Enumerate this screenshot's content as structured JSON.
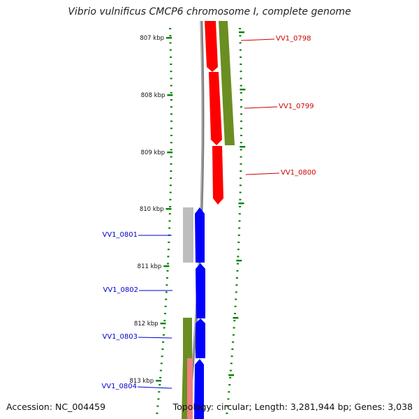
{
  "title": "Vibrio vulnificus CMCP6 chromosome I, complete genome",
  "accession": "Accession: NC_004459",
  "summary": "Topology: circular; Length: 3,281,944 bp; Genes: 3,038",
  "colors": {
    "forward_cds": "#ff0000",
    "reverse_cds": "#0000ff",
    "gene_olive": "#6b8e23",
    "gene_pink": "#f08080",
    "gene_gray": "#bdbdbd",
    "backbone": "#808080",
    "tick": "#008000",
    "axis_label": "#111111"
  },
  "ruler": {
    "labels": [
      "807 kbp",
      "808 kbp",
      "809 kbp",
      "810 kbp",
      "811 kbp",
      "812 kbp",
      "813 kbp"
    ]
  },
  "genes": [
    {
      "name": "VV1_0798",
      "strand": "forward",
      "label_color": "#cc0000"
    },
    {
      "name": "VV1_0799",
      "strand": "forward",
      "label_color": "#cc0000"
    },
    {
      "name": "VV1_0800",
      "strand": "forward",
      "label_color": "#cc0000"
    },
    {
      "name": "VV1_0801",
      "strand": "reverse",
      "label_color": "#0000cc"
    },
    {
      "name": "VV1_0802",
      "strand": "reverse",
      "label_color": "#0000cc"
    },
    {
      "name": "VV1_0803",
      "strand": "reverse",
      "label_color": "#0000cc"
    },
    {
      "name": "VV1_0804",
      "strand": "reverse",
      "label_color": "#0000cc"
    }
  ]
}
